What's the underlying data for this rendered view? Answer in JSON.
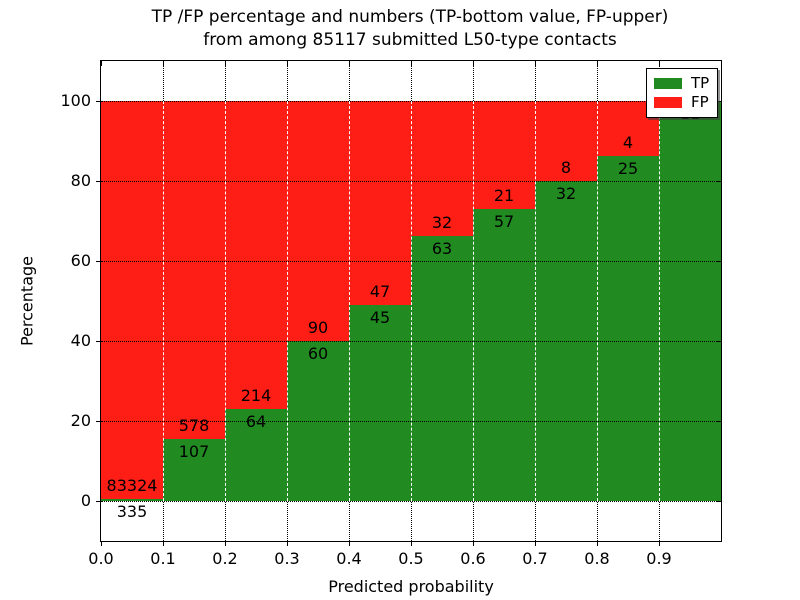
{
  "title": {
    "line1": "TP /FP percentage and numbers (TP-bottom value, FP-upper)",
    "line2": "from among 85117 submitted L50-type contacts"
  },
  "axes": {
    "xlabel": "Predicted probability",
    "ylabel": "Percentage",
    "xtick_labels": [
      "0.0",
      "0.1",
      "0.2",
      "0.3",
      "0.4",
      "0.5",
      "0.6",
      "0.7",
      "0.8",
      "0.9"
    ],
    "ytick_labels": [
      "0",
      "20",
      "40",
      "60",
      "80",
      "100"
    ],
    "ytick_values": [
      0,
      20,
      40,
      60,
      80,
      100
    ],
    "ylim": [
      -10,
      110
    ],
    "xlim": [
      0.0,
      1.0
    ],
    "grid": "dotted black, horizontal and vertical"
  },
  "legend": {
    "position": "upper right",
    "items": [
      {
        "label": "TP",
        "color": "#218a21"
      },
      {
        "label": "FP",
        "color": "#ff1e15"
      }
    ]
  },
  "colors": {
    "tp_green": "#218a21",
    "fp_red": "#ff1e15",
    "background": "#ffffff",
    "grid": "#000000",
    "bar_edge_dashed": "#ffffff"
  },
  "chart_data": {
    "type": "bar",
    "stacked": true,
    "title": "TP /FP percentage and numbers (TP-bottom value, FP-upper) from among 85117 submitted L50-type contacts",
    "xlabel": "Predicted probability",
    "ylabel": "Percentage",
    "ylim": [
      -10,
      110
    ],
    "total_contacts": 85117,
    "bin_edges": [
      0.0,
      0.1,
      0.2,
      0.3,
      0.4,
      0.5,
      0.6,
      0.7,
      0.8,
      0.9,
      1.0
    ],
    "categories": [
      "0.0-0.1",
      "0.1-0.2",
      "0.2-0.3",
      "0.3-0.4",
      "0.4-0.5",
      "0.5-0.6",
      "0.6-0.7",
      "0.7-0.8",
      "0.8-0.9",
      "0.9-1.0"
    ],
    "series": [
      {
        "name": "TP",
        "counts": [
          335,
          107,
          64,
          60,
          45,
          63,
          57,
          32,
          25,
          11
        ],
        "percentages": [
          0.4,
          15.62,
          23.02,
          40.0,
          48.91,
          66.32,
          73.08,
          80.0,
          86.21,
          100.0
        ]
      },
      {
        "name": "FP",
        "counts": [
          83324,
          578,
          214,
          90,
          47,
          32,
          21,
          8,
          4,
          0
        ],
        "percentages": [
          99.6,
          84.38,
          76.98,
          60.0,
          51.09,
          33.68,
          26.92,
          20.0,
          13.79,
          0.0
        ]
      }
    ],
    "legend_position": "upper right"
  }
}
